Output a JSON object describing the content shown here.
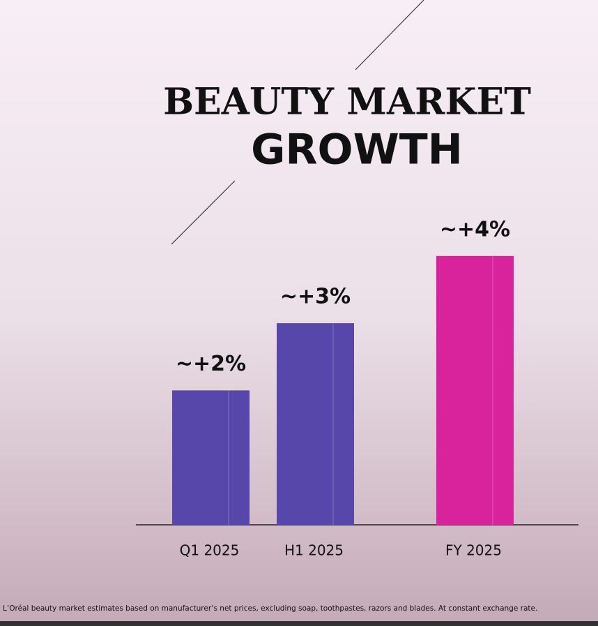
{
  "chart_data": {
    "type": "bar",
    "title": [
      "BEAUTY MARKET",
      "GROWTH"
    ],
    "categories": [
      "Q1 2025",
      "H1 2025",
      "FY 2025"
    ],
    "values": [
      2,
      3,
      4
    ],
    "value_labels": [
      "~+2%",
      "~+3%",
      "~+4%"
    ],
    "colors": [
      "#5847aa",
      "#5847aa",
      "#d9239c"
    ],
    "note": "L’Oréal beauty market estimates based on manufacturer’s net prices, excluding soap, toothpastes, razors and blades. At constant exchange rate."
  }
}
